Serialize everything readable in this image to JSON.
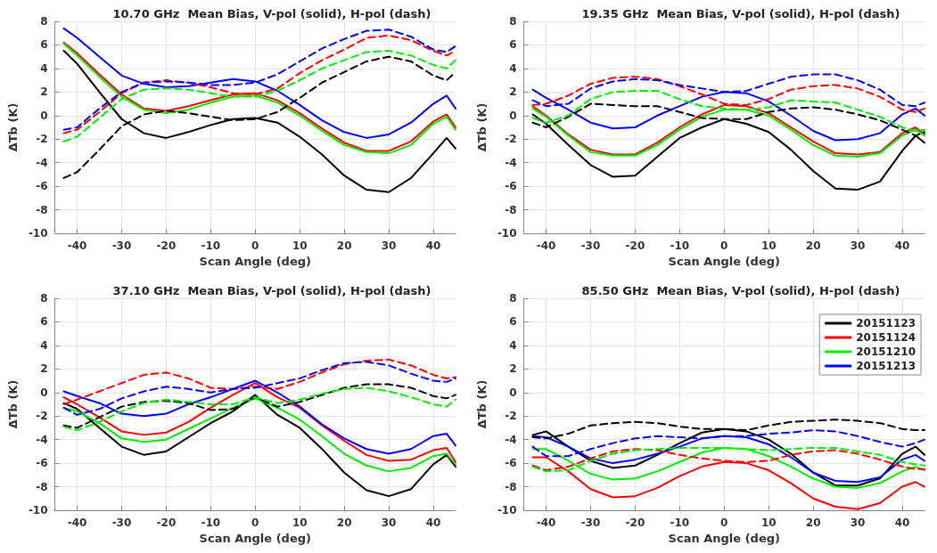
{
  "chart_data": [
    {
      "type": "line",
      "title": "10.70 GHz  Mean Bias, V-pol (solid), H-pol (dash)",
      "xlabel": "Scan Angle (deg)",
      "ylabel": "ΔTb (K)",
      "x": [
        -43,
        -40,
        -35,
        -30,
        -25,
        -20,
        -15,
        -10,
        -5,
        0,
        5,
        10,
        15,
        20,
        25,
        30,
        35,
        40,
        43,
        45
      ],
      "xlim": [
        -45,
        45
      ],
      "xticks": [
        -40,
        -30,
        -20,
        -10,
        0,
        10,
        20,
        30,
        40
      ],
      "ylim": [
        -10,
        8
      ],
      "yticks": [
        -10,
        -8,
        -6,
        -4,
        -2,
        0,
        2,
        4,
        6,
        8
      ],
      "grid": true,
      "legend": false,
      "marker": "none",
      "series": [
        {
          "color": "#000000",
          "line_style": "solid",
          "values": [
            5.5,
            4.4,
            2.0,
            -0.3,
            -1.5,
            -1.9,
            -1.4,
            -0.8,
            -0.3,
            -0.2,
            -0.6,
            -1.8,
            -3.3,
            -5.1,
            -6.3,
            -6.5,
            -5.3,
            -3.2,
            -1.9,
            -2.8
          ]
        },
        {
          "color": "#ff0000",
          "line_style": "solid",
          "values": [
            6.2,
            5.3,
            3.5,
            1.8,
            0.6,
            0.4,
            0.8,
            1.3,
            1.8,
            1.9,
            1.3,
            0.2,
            -1.1,
            -2.3,
            -3.0,
            -3.0,
            -2.2,
            -0.5,
            0.1,
            -1.0
          ]
        },
        {
          "color": "#00ee00",
          "line_style": "solid",
          "values": [
            6.1,
            5.1,
            3.3,
            1.6,
            0.5,
            0.2,
            0.5,
            1.1,
            1.6,
            1.7,
            1.1,
            0.0,
            -1.3,
            -2.5,
            -3.1,
            -3.2,
            -2.5,
            -0.7,
            -0.1,
            -1.2
          ]
        },
        {
          "color": "#0000ff",
          "line_style": "solid",
          "values": [
            7.4,
            6.6,
            5.0,
            3.4,
            2.7,
            2.4,
            2.5,
            2.8,
            3.1,
            2.9,
            2.1,
            0.9,
            -0.4,
            -1.4,
            -1.9,
            -1.6,
            -0.6,
            1.0,
            1.7,
            0.6
          ]
        },
        {
          "color": "#000000",
          "line_style": "dashed",
          "values": [
            -5.3,
            -4.8,
            -2.9,
            -0.9,
            0.1,
            0.4,
            0.2,
            -0.1,
            -0.4,
            -0.3,
            0.3,
            1.5,
            2.8,
            3.7,
            4.6,
            5.0,
            4.6,
            3.4,
            3.0,
            3.7
          ]
        },
        {
          "color": "#ff0000",
          "line_style": "dashed",
          "values": [
            -1.5,
            -1.2,
            0.3,
            1.9,
            2.8,
            3.0,
            2.8,
            2.4,
            1.9,
            1.8,
            2.3,
            3.6,
            4.7,
            5.6,
            6.6,
            6.8,
            6.4,
            5.5,
            5.1,
            5.5
          ]
        },
        {
          "color": "#00ee00",
          "line_style": "dashed",
          "values": [
            -2.2,
            -1.8,
            -0.2,
            1.4,
            2.2,
            2.3,
            2.2,
            1.9,
            1.6,
            1.6,
            2.1,
            3.0,
            4.0,
            4.7,
            5.4,
            5.5,
            5.1,
            4.3,
            4.0,
            4.7
          ]
        },
        {
          "color": "#0000ff",
          "line_style": "dashed",
          "values": [
            -1.2,
            -1.0,
            0.6,
            2.0,
            2.8,
            2.9,
            2.8,
            2.6,
            2.6,
            2.8,
            3.5,
            4.6,
            5.7,
            6.5,
            7.2,
            7.3,
            6.7,
            5.6,
            5.4,
            5.9
          ]
        }
      ]
    },
    {
      "type": "line",
      "title": "19.35 GHz  Mean Bias, V-pol (solid), H-pol (dash)",
      "xlabel": "Scan Angle (deg)",
      "ylabel": "ΔTb (K)",
      "x": [
        -43,
        -40,
        -35,
        -30,
        -25,
        -20,
        -15,
        -10,
        -5,
        0,
        5,
        10,
        15,
        20,
        25,
        30,
        35,
        40,
        43,
        45
      ],
      "xlim": [
        -45,
        45
      ],
      "xticks": [
        -40,
        -30,
        -20,
        -10,
        0,
        10,
        20,
        30,
        40
      ],
      "ylim": [
        -10,
        8
      ],
      "yticks": [
        -10,
        -8,
        -6,
        -4,
        -2,
        0,
        2,
        4,
        6,
        8
      ],
      "grid": true,
      "legend": false,
      "marker": "none",
      "series": [
        {
          "color": "#000000",
          "line_style": "solid",
          "values": [
            0.1,
            -0.7,
            -2.5,
            -4.2,
            -5.2,
            -5.1,
            -3.5,
            -1.9,
            -1.0,
            -0.3,
            -0.7,
            -1.4,
            -2.9,
            -4.7,
            -6.2,
            -6.3,
            -5.6,
            -3.0,
            -1.7,
            -2.3
          ]
        },
        {
          "color": "#ff0000",
          "line_style": "solid",
          "values": [
            0.8,
            0.0,
            -1.6,
            -2.9,
            -3.3,
            -3.3,
            -2.3,
            -1.0,
            0.1,
            0.9,
            0.8,
            0.2,
            -1.0,
            -2.2,
            -3.2,
            -3.3,
            -3.1,
            -1.5,
            -1.0,
            -1.6
          ]
        },
        {
          "color": "#00ee00",
          "line_style": "solid",
          "values": [
            0.6,
            -0.1,
            -1.7,
            -3.1,
            -3.4,
            -3.4,
            -2.5,
            -1.2,
            -0.1,
            0.5,
            0.5,
            0.0,
            -1.2,
            -2.5,
            -3.4,
            -3.5,
            -3.2,
            -1.7,
            -1.2,
            -1.7
          ]
        },
        {
          "color": "#0000ff",
          "line_style": "solid",
          "values": [
            2.2,
            1.5,
            0.5,
            -0.6,
            -1.1,
            -1.0,
            0.0,
            0.8,
            1.6,
            2.0,
            1.9,
            1.2,
            0.0,
            -1.3,
            -2.1,
            -2.0,
            -1.5,
            0.1,
            0.6,
            0.0
          ]
        },
        {
          "color": "#000000",
          "line_style": "dashed",
          "values": [
            -0.6,
            -1.0,
            -0.1,
            1.0,
            0.9,
            0.8,
            0.8,
            0.3,
            -0.2,
            -0.3,
            -0.3,
            0.3,
            0.6,
            0.7,
            0.5,
            0.1,
            -0.4,
            -1.2,
            -1.7,
            -1.4
          ]
        },
        {
          "color": "#ff0000",
          "line_style": "dashed",
          "values": [
            0.9,
            1.0,
            1.7,
            2.7,
            3.2,
            3.3,
            3.1,
            2.5,
            1.8,
            1.0,
            0.9,
            1.4,
            2.2,
            2.5,
            2.6,
            2.3,
            1.6,
            0.5,
            0.3,
            0.6
          ]
        },
        {
          "color": "#00ee00",
          "line_style": "dashed",
          "values": [
            -0.2,
            -0.6,
            0.0,
            1.4,
            2.0,
            2.1,
            2.1,
            1.4,
            0.8,
            0.6,
            0.5,
            0.7,
            1.3,
            1.2,
            1.1,
            0.5,
            -0.1,
            -1.0,
            -1.3,
            -1.2
          ]
        },
        {
          "color": "#0000ff",
          "line_style": "dashed",
          "values": [
            1.3,
            0.8,
            1.0,
            2.3,
            2.9,
            3.1,
            3.0,
            2.6,
            2.3,
            2.0,
            2.1,
            2.7,
            3.3,
            3.5,
            3.5,
            3.0,
            2.2,
            0.9,
            0.8,
            1.1
          ]
        }
      ]
    },
    {
      "type": "line",
      "title": "37.10 GHz  Mean Bias, V-pol (solid), H-pol (dash)",
      "xlabel": "Scan Angle (deg)",
      "ylabel": "ΔTb (K)",
      "x": [
        -43,
        -40,
        -35,
        -30,
        -25,
        -20,
        -15,
        -10,
        -5,
        0,
        5,
        10,
        15,
        20,
        25,
        30,
        35,
        40,
        43,
        45
      ],
      "xlim": [
        -45,
        45
      ],
      "xticks": [
        -40,
        -30,
        -20,
        -10,
        0,
        10,
        20,
        30,
        40
      ],
      "ylim": [
        -10,
        8
      ],
      "yticks": [
        -10,
        -8,
        -6,
        -4,
        -2,
        0,
        2,
        4,
        6,
        8
      ],
      "grid": true,
      "legend": false,
      "marker": "none",
      "series": [
        {
          "color": "#000000",
          "line_style": "solid",
          "values": [
            -0.9,
            -1.4,
            -3.0,
            -4.6,
            -5.3,
            -5.0,
            -3.8,
            -2.6,
            -1.6,
            -0.2,
            -1.9,
            -3.0,
            -4.8,
            -6.8,
            -8.3,
            -8.8,
            -8.2,
            -6.1,
            -5.3,
            -6.3
          ]
        },
        {
          "color": "#ff0000",
          "line_style": "solid",
          "values": [
            -0.4,
            -1.0,
            -2.1,
            -3.3,
            -3.6,
            -3.4,
            -2.5,
            -1.3,
            -0.2,
            0.8,
            -0.4,
            -1.3,
            -2.8,
            -4.1,
            -5.3,
            -5.8,
            -5.7,
            -4.9,
            -4.7,
            -5.9
          ]
        },
        {
          "color": "#00ee00",
          "line_style": "solid",
          "values": [
            -1.3,
            -1.6,
            -2.6,
            -3.9,
            -4.2,
            -4.0,
            -3.1,
            -2.2,
            -1.3,
            -0.5,
            -1.3,
            -2.3,
            -3.7,
            -5.2,
            -6.2,
            -6.7,
            -6.4,
            -5.4,
            -5.2,
            -6.1
          ]
        },
        {
          "color": "#0000ff",
          "line_style": "solid",
          "values": [
            0.1,
            -0.3,
            -0.9,
            -1.8,
            -2.0,
            -1.8,
            -1.0,
            -0.4,
            0.3,
            1.0,
            0.0,
            -1.2,
            -2.7,
            -3.9,
            -4.8,
            -5.2,
            -4.8,
            -3.7,
            -3.5,
            -4.5
          ]
        },
        {
          "color": "#000000",
          "line_style": "dashed",
          "values": [
            -2.8,
            -3.0,
            -2.1,
            -1.2,
            -0.8,
            -0.7,
            -0.9,
            -1.5,
            -1.4,
            -0.4,
            -1.2,
            -0.8,
            -0.2,
            0.4,
            0.7,
            0.7,
            0.4,
            -0.3,
            -0.5,
            -0.2
          ]
        },
        {
          "color": "#ff0000",
          "line_style": "dashed",
          "values": [
            -1.0,
            -0.6,
            0.1,
            0.8,
            1.5,
            1.7,
            1.2,
            0.4,
            0.3,
            0.5,
            0.3,
            0.9,
            1.7,
            2.4,
            2.7,
            2.8,
            2.3,
            1.5,
            1.2,
            1.3
          ]
        },
        {
          "color": "#00ee00",
          "line_style": "dashed",
          "values": [
            -2.9,
            -3.2,
            -2.5,
            -1.6,
            -0.9,
            -0.6,
            -0.8,
            -1.0,
            -1.0,
            -0.4,
            -0.9,
            -0.6,
            -0.1,
            0.3,
            0.4,
            0.1,
            -0.4,
            -1.0,
            -1.2,
            -0.6
          ]
        },
        {
          "color": "#0000ff",
          "line_style": "dashed",
          "values": [
            -1.3,
            -1.9,
            -1.4,
            -0.5,
            0.1,
            0.5,
            0.3,
            0.0,
            0.3,
            0.4,
            0.8,
            1.2,
            1.9,
            2.5,
            2.6,
            2.3,
            1.6,
            1.0,
            0.9,
            1.2
          ]
        }
      ]
    },
    {
      "type": "line",
      "title": "85.50 GHz  Mean Bias, V-pol (solid), H-pol (dash)",
      "xlabel": "Scan Angle (deg)",
      "ylabel": "ΔTb (K)",
      "x": [
        -43,
        -40,
        -35,
        -30,
        -25,
        -20,
        -15,
        -10,
        -5,
        0,
        5,
        10,
        15,
        20,
        25,
        30,
        35,
        40,
        43,
        45
      ],
      "xlim": [
        -45,
        45
      ],
      "xticks": [
        -40,
        -30,
        -20,
        -10,
        0,
        10,
        20,
        30,
        40
      ],
      "ylim": [
        -10,
        8
      ],
      "yticks": [
        -10,
        -8,
        -6,
        -4,
        -2,
        0,
        2,
        4,
        6,
        8
      ],
      "grid": true,
      "legend": "top right",
      "marker": "none",
      "series": [
        {
          "name": "20151123",
          "color": "#000000",
          "line_style": "solid",
          "values": [
            -3.6,
            -3.3,
            -4.6,
            -5.8,
            -6.4,
            -6.2,
            -5.3,
            -4.3,
            -3.4,
            -3.1,
            -3.3,
            -4.0,
            -5.2,
            -6.8,
            -7.9,
            -7.9,
            -7.3,
            -5.2,
            -4.6,
            -5.3
          ]
        },
        {
          "name": "20151124",
          "color": "#ff0000",
          "line_style": "solid",
          "values": [
            -5.5,
            -5.5,
            -6.7,
            -8.2,
            -8.9,
            -8.8,
            -8.1,
            -7.1,
            -6.3,
            -5.9,
            -6.0,
            -6.6,
            -7.7,
            -9.0,
            -9.7,
            -9.9,
            -9.4,
            -8.0,
            -7.6,
            -8.0
          ]
        },
        {
          "name": "20151210",
          "color": "#00ee00",
          "line_style": "solid",
          "values": [
            -4.8,
            -4.8,
            -5.8,
            -6.9,
            -7.4,
            -7.3,
            -6.7,
            -5.9,
            -5.1,
            -4.7,
            -4.8,
            -5.4,
            -6.3,
            -7.3,
            -8.0,
            -8.1,
            -7.7,
            -6.7,
            -6.3,
            -6.6
          ]
        },
        {
          "name": "20151213",
          "color": "#0000ff",
          "line_style": "solid",
          "values": [
            -3.7,
            -3.8,
            -4.6,
            -5.6,
            -6.0,
            -5.7,
            -5.2,
            -4.6,
            -3.9,
            -3.7,
            -3.8,
            -4.4,
            -5.5,
            -6.8,
            -7.5,
            -7.6,
            -7.2,
            -5.7,
            -5.3,
            -5.8
          ]
        },
        {
          "color": "#000000",
          "line_style": "dashed",
          "values": [
            -3.8,
            -3.9,
            -3.5,
            -2.8,
            -2.6,
            -2.5,
            -2.6,
            -2.9,
            -3.1,
            -3.1,
            -3.2,
            -2.8,
            -2.5,
            -2.4,
            -2.3,
            -2.4,
            -2.6,
            -3.1,
            -3.2,
            -3.2
          ]
        },
        {
          "color": "#ff0000",
          "line_style": "dashed",
          "values": [
            -6.2,
            -6.6,
            -6.3,
            -5.6,
            -5.0,
            -4.8,
            -4.9,
            -5.3,
            -5.6,
            -5.8,
            -5.9,
            -5.8,
            -5.3,
            -5.0,
            -4.9,
            -5.2,
            -5.7,
            -6.3,
            -6.5,
            -6.5
          ]
        },
        {
          "color": "#00ee00",
          "line_style": "dashed",
          "values": [
            -6.3,
            -6.7,
            -6.6,
            -5.8,
            -5.2,
            -4.9,
            -4.8,
            -4.7,
            -4.7,
            -4.7,
            -4.8,
            -4.9,
            -4.8,
            -4.7,
            -4.7,
            -5.0,
            -5.3,
            -5.9,
            -6.1,
            -6.2
          ]
        },
        {
          "color": "#0000ff",
          "line_style": "dashed",
          "values": [
            -4.6,
            -5.4,
            -5.4,
            -4.8,
            -4.3,
            -3.9,
            -3.7,
            -3.8,
            -3.9,
            -3.7,
            -3.7,
            -3.5,
            -3.4,
            -3.2,
            -3.3,
            -3.7,
            -4.2,
            -4.6,
            -4.3,
            -4.0
          ]
        }
      ]
    }
  ]
}
